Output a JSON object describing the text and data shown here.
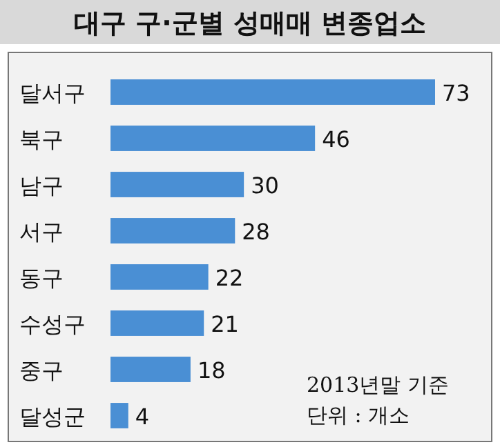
{
  "chart_data": {
    "type": "bar",
    "orientation": "horizontal",
    "title": "대구 구·군별 성매매 변종업소",
    "categories": [
      "달서구",
      "북구",
      "남구",
      "서구",
      "동구",
      "수성구",
      "중구",
      "달성군"
    ],
    "values": [
      73,
      46,
      30,
      28,
      22,
      21,
      18,
      4
    ],
    "color": "#4a8fd4",
    "data_labels": true,
    "annotations": [
      "2013년말 기준",
      "단위 : 개소"
    ]
  }
}
